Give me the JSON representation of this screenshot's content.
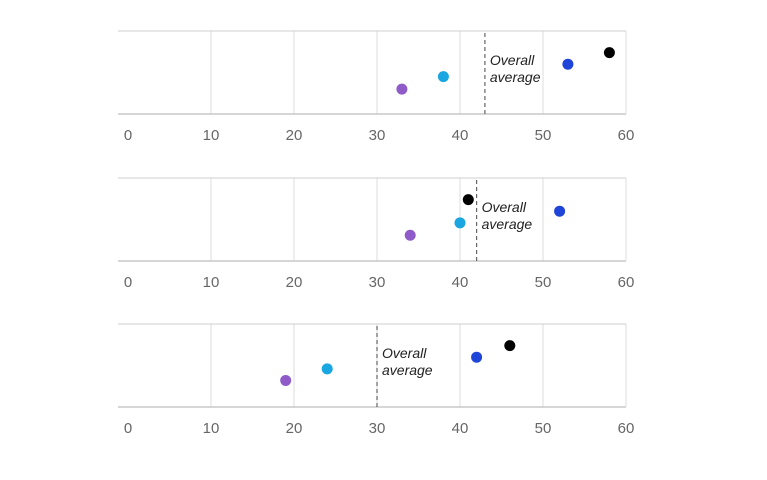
{
  "chart_data": [
    {
      "type": "scatter",
      "title": "",
      "xlabel": "",
      "ylabel": "",
      "xlim": [
        0,
        60
      ],
      "xticks": [
        "0",
        "10",
        "20",
        "30",
        "40",
        "50",
        "60"
      ],
      "grid": true,
      "reference_line": {
        "label_lines": [
          "Overall",
          "average"
        ],
        "x": 43
      },
      "series": [
        {
          "color": "#8e5bc8",
          "x": 33,
          "level": 0.3
        },
        {
          "color": "#1aa6e0",
          "x": 38,
          "level": 0.45
        },
        {
          "color": "#1f45d8",
          "x": 53,
          "level": 0.6
        },
        {
          "color": "#000000",
          "x": 58,
          "level": 0.74
        }
      ]
    },
    {
      "type": "scatter",
      "title": "",
      "xlabel": "",
      "ylabel": "",
      "xlim": [
        0,
        60
      ],
      "xticks": [
        "0",
        "10",
        "20",
        "30",
        "40",
        "50",
        "60"
      ],
      "grid": true,
      "reference_line": {
        "label_lines": [
          "Overall",
          "average"
        ],
        "x": 42
      },
      "series": [
        {
          "color": "#8e5bc8",
          "x": 34,
          "level": 0.31
        },
        {
          "color": "#1aa6e0",
          "x": 40,
          "level": 0.46
        },
        {
          "color": "#1f45d8",
          "x": 52,
          "level": 0.6
        },
        {
          "color": "#000000",
          "x": 41,
          "level": 0.74
        }
      ]
    },
    {
      "type": "scatter",
      "title": "",
      "xlabel": "",
      "ylabel": "",
      "xlim": [
        0,
        60
      ],
      "xticks": [
        "0",
        "10",
        "20",
        "30",
        "40",
        "50",
        "60"
      ],
      "grid": true,
      "reference_line": {
        "label_lines": [
          "Overall",
          "average"
        ],
        "x": 30
      },
      "series": [
        {
          "color": "#8e5bc8",
          "x": 19,
          "level": 0.32
        },
        {
          "color": "#1aa6e0",
          "x": 24,
          "level": 0.46
        },
        {
          "color": "#1f45d8",
          "x": 42,
          "level": 0.6
        },
        {
          "color": "#000000",
          "x": 46,
          "level": 0.74
        }
      ]
    }
  ]
}
